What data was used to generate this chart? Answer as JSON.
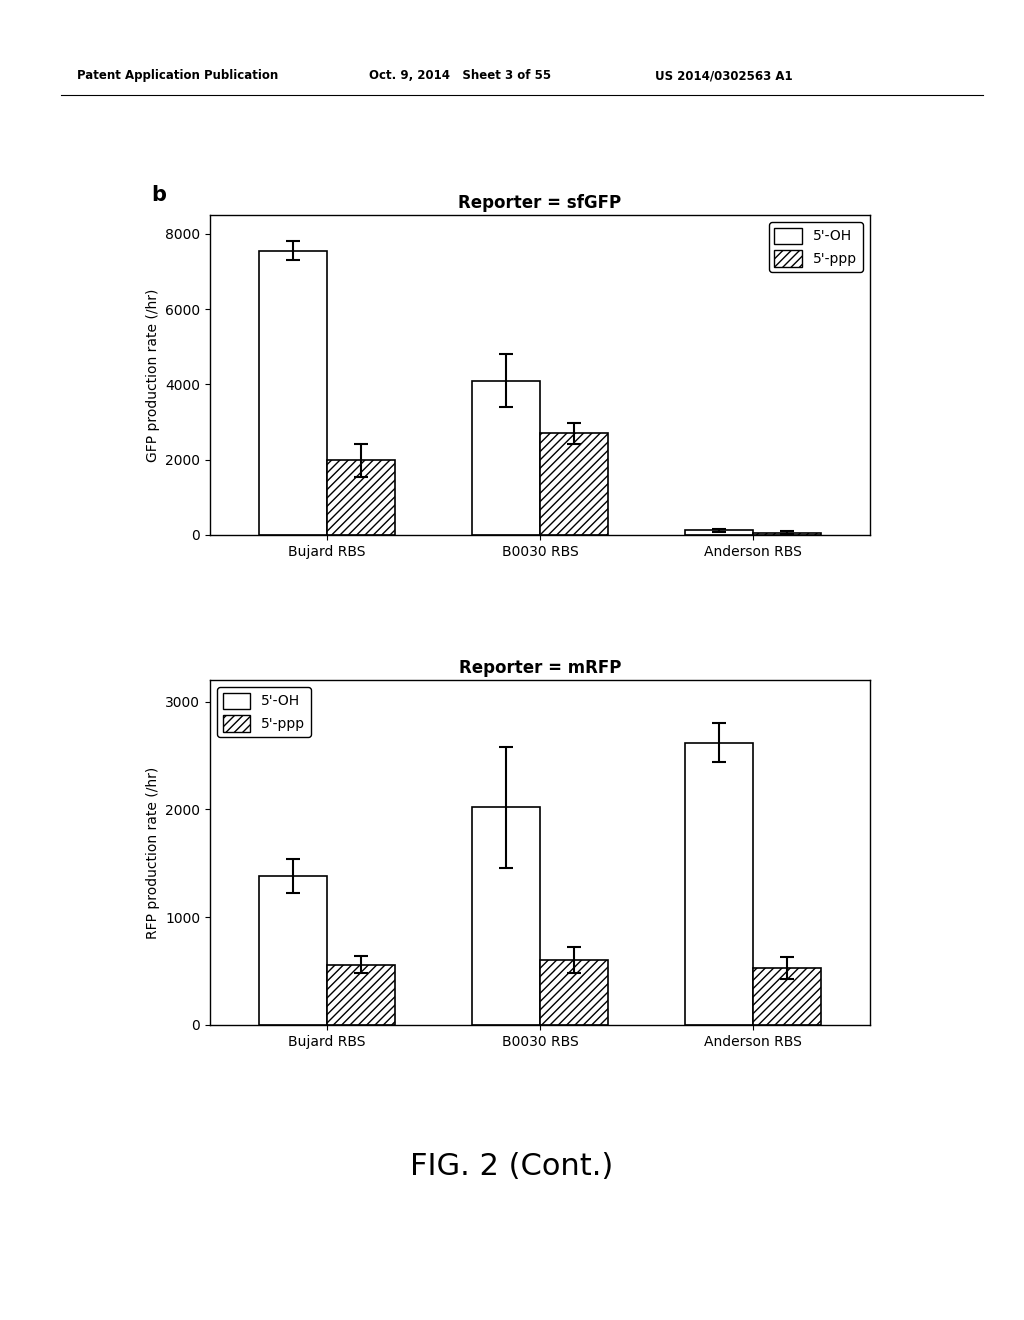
{
  "background_color": "#ffffff",
  "header_left": "Patent Application Publication",
  "header_mid": "Oct. 9, 2014   Sheet 3 of 55",
  "header_right": "US 2014/0302563 A1",
  "figure_label": "b",
  "figure_caption": "FIG. 2 (Cont.)",
  "top_chart": {
    "title": "Reporter = sfGFP",
    "ylabel": "GFP production rate (/hr)",
    "categories": [
      "Bujard RBS",
      "B0030 RBS",
      "Anderson RBS"
    ],
    "oh_values": [
      7550,
      4100,
      120
    ],
    "oh_errors": [
      250,
      700,
      50
    ],
    "ppp_values": [
      1980,
      2700,
      60
    ],
    "ppp_errors": [
      450,
      280,
      40
    ],
    "ylim": [
      0,
      8500
    ],
    "yticks": [
      0,
      2000,
      4000,
      6000,
      8000
    ]
  },
  "bottom_chart": {
    "title": "Reporter = mRFP",
    "ylabel": "RFP production rate (/hr)",
    "categories": [
      "Bujard RBS",
      "B0030 RBS",
      "Anderson RBS"
    ],
    "oh_values": [
      1380,
      2020,
      2620
    ],
    "oh_errors": [
      160,
      560,
      180
    ],
    "ppp_values": [
      560,
      600,
      530
    ],
    "ppp_errors": [
      80,
      120,
      100
    ],
    "ylim": [
      0,
      3200
    ],
    "yticks": [
      0,
      1000,
      2000,
      3000
    ]
  },
  "legend_oh_label": "5'-OH",
  "legend_ppp_label": "5'-ppp",
  "oh_facecolor": "#ffffff",
  "oh_edgecolor": "#000000",
  "ppp_edgecolor": "#000000",
  "bar_width": 0.32,
  "title_fontsize": 12,
  "label_fontsize": 10,
  "tick_fontsize": 10,
  "legend_fontsize": 10,
  "header_fontsize": 8.5,
  "caption_fontsize": 22
}
